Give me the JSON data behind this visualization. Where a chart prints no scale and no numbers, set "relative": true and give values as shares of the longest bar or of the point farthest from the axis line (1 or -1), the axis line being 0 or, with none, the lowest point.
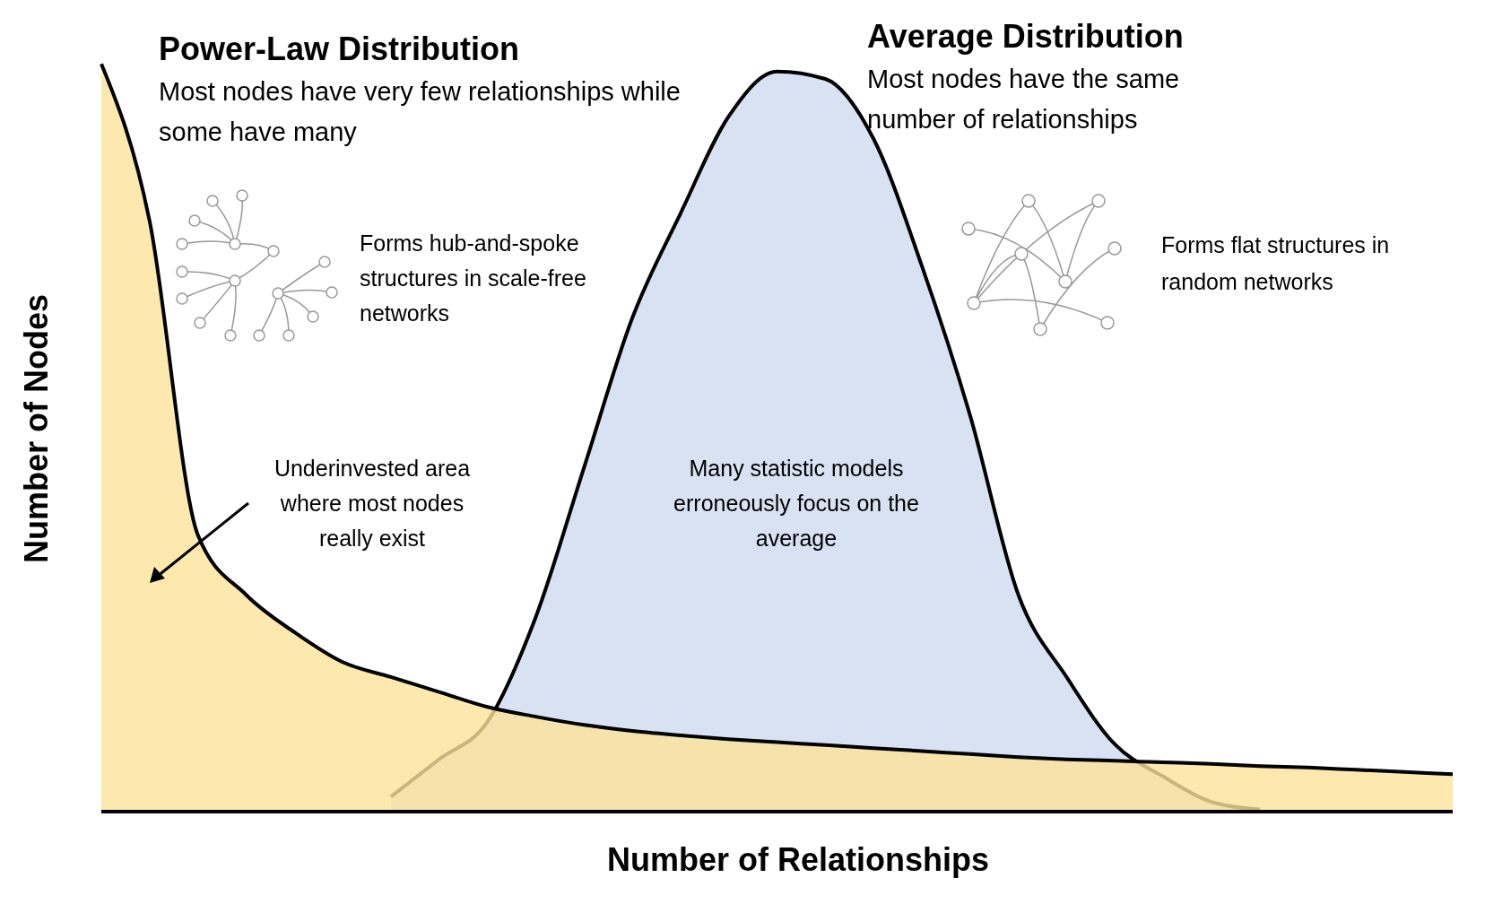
{
  "chart_data": {
    "type": "area",
    "relative": true,
    "xlabel": "Number of Relationships",
    "ylabel": "Number of Nodes",
    "categories": [
      null,
      null,
      null,
      null,
      null,
      null,
      null,
      null,
      null,
      null,
      null,
      null,
      null,
      null,
      null,
      null,
      null,
      null,
      null,
      null,
      null,
      null,
      null,
      null,
      null,
      null,
      null,
      null,
      null
    ],
    "series": [
      {
        "name": "Average Distribution",
        "color": "#d9e2f3",
        "values": [
          null,
          null,
          null,
          null,
          null,
          null,
          0.02,
          0.07,
          0.12,
          0.26,
          0.46,
          0.66,
          0.8,
          0.93,
          0.99,
          0.98,
          0.9,
          0.73,
          0.53,
          0.29,
          0.18,
          0.09,
          0.047,
          0.013,
          0.003,
          null,
          null,
          null,
          null
        ]
      },
      {
        "name": "Power-Law Distribution",
        "color": "#fde398",
        "values": [
          1,
          0.79,
          0.37,
          0.29,
          0.24,
          0.2,
          0.18,
          0.16,
          0.14,
          0.127,
          0.116,
          0.108,
          0.102,
          0.097,
          0.093,
          0.089,
          0.085,
          0.081,
          0.077,
          0.073,
          0.07,
          0.068,
          0.066,
          0.064,
          0.061,
          0.059,
          0.056,
          0.053,
          0.05
        ]
      }
    ],
    "annotations": [
      "Most nodes have very few relationships while some have many",
      "Most nodes have the same number of relationships",
      "Forms hub-and-spoke structures in scale-free networks",
      "Forms flat structures in random networks",
      "Underinvested area where most nodes really exist",
      "Many statistic models erroneously focus on the average"
    ]
  }
}
